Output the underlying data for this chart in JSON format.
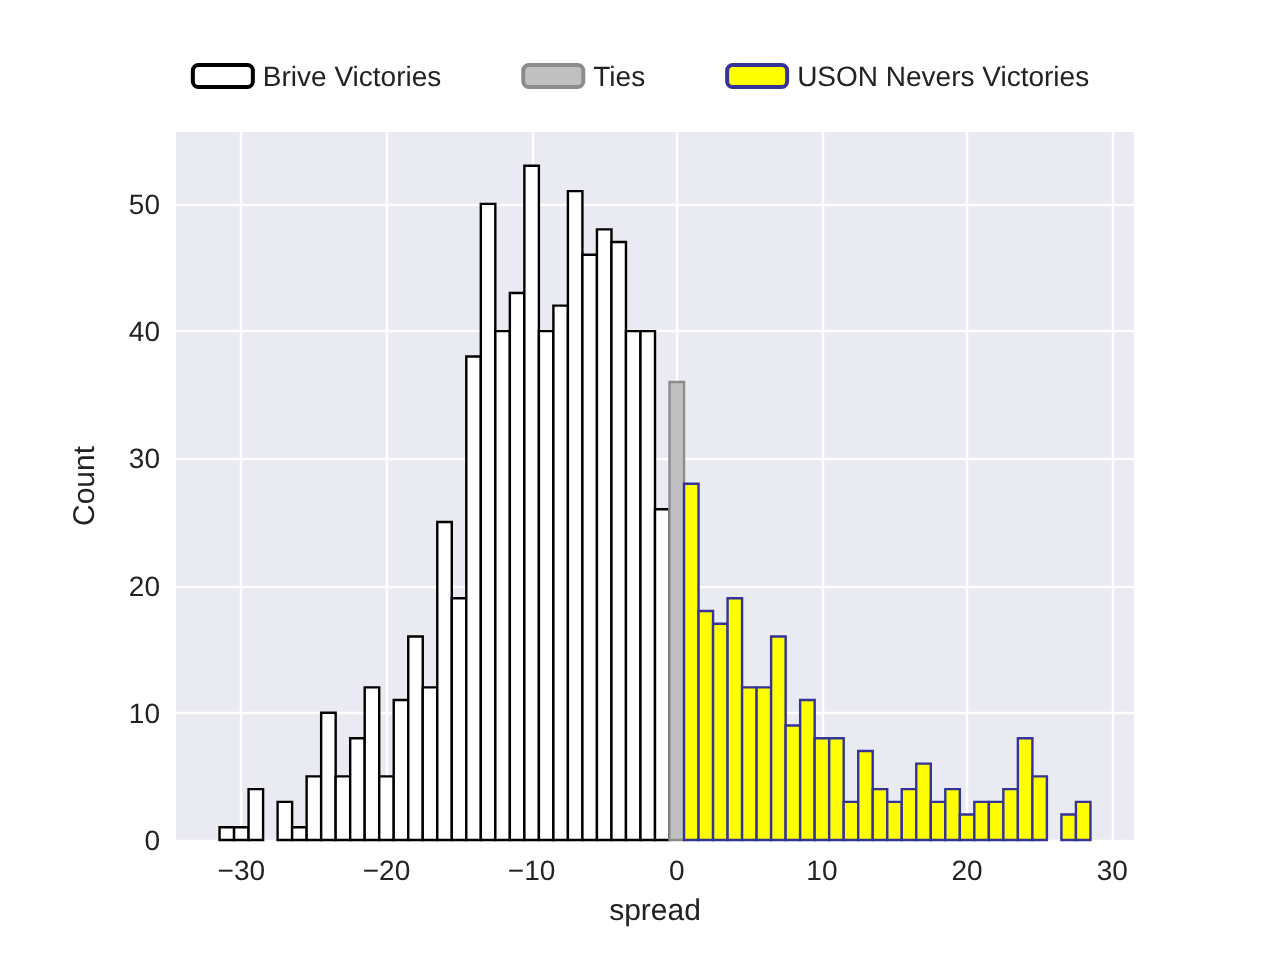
{
  "chart_data": {
    "type": "histogram",
    "xlabel": "spread",
    "ylabel": "Count",
    "bins": [
      -31.5,
      -30.5,
      -29.5,
      -28.5,
      -27.5,
      -26.5,
      -25.5,
      -24.5,
      -23.5,
      -22.5,
      -21.5,
      -20.5,
      -19.5,
      -18.5,
      -17.5,
      -16.5,
      -15.5,
      -14.5,
      -13.5,
      -12.5,
      -11.5,
      -10.5,
      -9.5,
      -8.5,
      -7.5,
      -6.5,
      -5.5,
      -4.5,
      -3.5,
      -2.5,
      -1.5,
      -0.5,
      0.5,
      1.5,
      2.5,
      3.5,
      4.5,
      5.5,
      6.5,
      7.5,
      8.5,
      9.5,
      10.5,
      11.5,
      12.5,
      13.5,
      14.5,
      15.5,
      16.5,
      17.5,
      18.5,
      19.5,
      20.5,
      21.5,
      22.5,
      23.5,
      24.5,
      25.5,
      26.5,
      27.5,
      28.5
    ],
    "series": [
      {
        "name": "Brive Victories",
        "color": "#ffffff",
        "values": [
          1,
          1,
          4,
          null,
          3,
          1,
          5,
          10,
          5,
          8,
          12,
          5,
          11,
          16,
          12,
          25,
          19,
          38,
          50,
          40,
          43,
          53,
          40,
          42,
          51,
          46,
          48,
          47,
          40,
          40,
          26,
          null,
          null,
          null,
          null,
          null,
          null,
          null,
          null,
          null,
          null,
          null,
          null,
          null,
          null,
          null,
          null,
          null,
          null,
          null,
          null,
          null,
          null,
          null,
          null,
          null,
          null,
          null,
          null,
          null
        ]
      },
      {
        "name": "Ties",
        "color": "#c0c0c0",
        "values": [
          null,
          null,
          null,
          null,
          null,
          null,
          null,
          null,
          null,
          null,
          null,
          null,
          null,
          null,
          null,
          null,
          null,
          null,
          null,
          null,
          null,
          null,
          null,
          null,
          null,
          null,
          null,
          null,
          null,
          null,
          null,
          36,
          null,
          null,
          null,
          null,
          null,
          null,
          null,
          null,
          null,
          null,
          null,
          null,
          null,
          null,
          null,
          null,
          null,
          null,
          null,
          null,
          null,
          null,
          null,
          null,
          null,
          null,
          null,
          null
        ]
      },
      {
        "name": "USON Nevers Victories",
        "color": "#ffff00",
        "values": [
          null,
          null,
          null,
          null,
          null,
          null,
          null,
          null,
          null,
          null,
          null,
          null,
          null,
          null,
          null,
          null,
          null,
          null,
          null,
          null,
          null,
          null,
          null,
          null,
          null,
          null,
          null,
          null,
          null,
          null,
          null,
          null,
          28,
          18,
          17,
          19,
          12,
          12,
          16,
          9,
          11,
          8,
          8,
          3,
          7,
          4,
          3,
          4,
          6,
          3,
          4,
          2,
          3,
          3,
          4,
          8,
          5,
          null,
          2,
          3
        ]
      }
    ],
    "xlim": [
      -34.5,
      31.5
    ],
    "xticks": [
      -30,
      -20,
      -10,
      0,
      10,
      20,
      30
    ],
    "ylim": [
      0,
      55.65
    ],
    "yticks": [
      0,
      10,
      20,
      30,
      40,
      50
    ],
    "grid": true,
    "legend": "top"
  }
}
